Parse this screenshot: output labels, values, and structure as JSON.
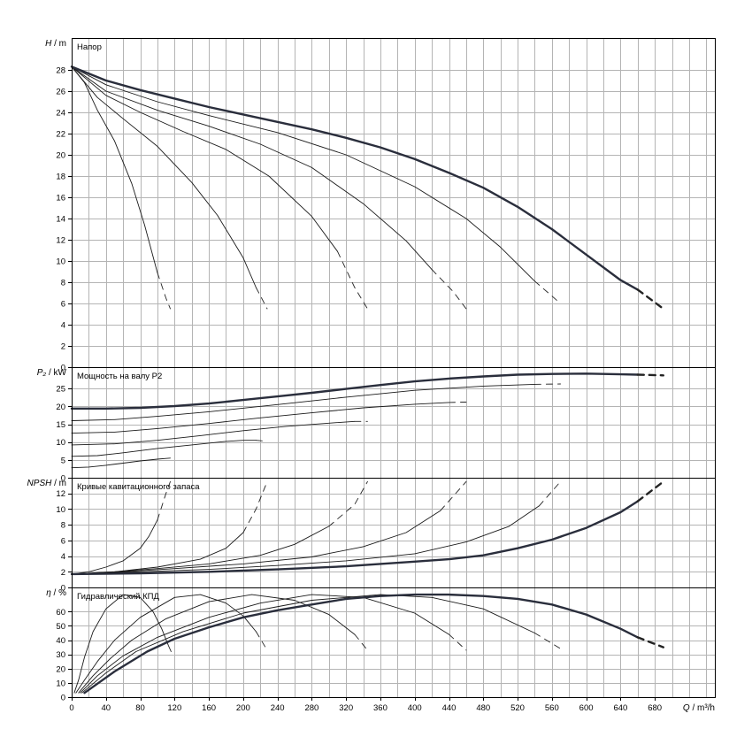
{
  "x_axis": {
    "label_q": "Q",
    "label_unit": "/ m³/h",
    "ticks": [
      0,
      40,
      80,
      120,
      160,
      200,
      240,
      280,
      320,
      360,
      400,
      440,
      480,
      520,
      560,
      600,
      640,
      680
    ],
    "range": [
      0,
      750
    ]
  },
  "panels": [
    {
      "id": "head",
      "title": "Напор",
      "ylabel_sym": "H",
      "ylabel_unit": "/ m",
      "ylim": [
        0,
        31
      ],
      "ticks": [
        0,
        2,
        4,
        6,
        8,
        10,
        12,
        14,
        16,
        18,
        20,
        22,
        24,
        26,
        28
      ],
      "tick_labels": [
        "0",
        "2",
        "4",
        "6",
        "8",
        "10",
        "12",
        "14",
        "16",
        "18",
        "20",
        "22",
        "24",
        "26",
        "28"
      ]
    },
    {
      "id": "power",
      "title": "Мощность на валу P2",
      "ylabel_sym": "P₂",
      "ylabel_unit": "/ kW",
      "ylim": [
        0,
        31
      ],
      "ticks": [
        0,
        5,
        10,
        15,
        20,
        25
      ],
      "tick_labels": [
        "0",
        "5",
        "10",
        "15",
        "20",
        "25"
      ]
    },
    {
      "id": "npsh",
      "title": "Кривые кавитационного запаса",
      "ylabel_sym": "NPSH",
      "ylabel_unit": "/ m",
      "ylim": [
        0,
        14
      ],
      "ticks": [
        0,
        2,
        4,
        6,
        8,
        10,
        12
      ],
      "tick_labels": [
        "0",
        "2",
        "4",
        "6",
        "8",
        "10",
        "12"
      ]
    },
    {
      "id": "eff",
      "title": "Гидравлический КПД",
      "ylabel_sym": "η",
      "ylabel_unit": "/ %",
      "ylim": [
        0,
        77
      ],
      "ticks": [
        0,
        10,
        20,
        30,
        40,
        50,
        60
      ],
      "tick_labels": [
        "0",
        "10",
        "20",
        "30",
        "40",
        "50",
        "60"
      ]
    }
  ],
  "chart_data": {
    "type": "line",
    "xlabel": "Q / m³/h",
    "xlim": [
      0,
      750
    ],
    "panels": [
      {
        "panel": "head",
        "ylabel": "H / m",
        "ylim": [
          0,
          31
        ],
        "series": [
          {
            "bold": false,
            "x": [
              0,
              15,
              30,
              50,
              70,
              85,
              100,
              110,
              115
            ],
            "y": [
              28.3,
              26.8,
              24.2,
              21.3,
              17.3,
              13.4,
              8.9,
              6.5,
              5.5
            ],
            "dash_from": 108
          },
          {
            "bold": false,
            "x": [
              0,
              30,
              60,
              100,
              140,
              170,
              200,
              215,
              228
            ],
            "y": [
              28.3,
              25.4,
              23.4,
              20.8,
              17.4,
              14.3,
              10.3,
              7.5,
              5.5
            ],
            "dash_from": 216
          },
          {
            "bold": false,
            "x": [
              0,
              40,
              80,
              130,
              180,
              230,
              280,
              310,
              330,
              345
            ],
            "y": [
              28.3,
              25.6,
              24.0,
              22.2,
              20.5,
              18.0,
              14.2,
              10.9,
              7.5,
              5.5
            ],
            "dash_from": 328
          },
          {
            "bold": false,
            "x": [
              0,
              40,
              100,
              160,
              220,
              280,
              340,
              390,
              420,
              445,
              460
            ],
            "y": [
              28.3,
              26.0,
              24.2,
              22.7,
              21.0,
              18.8,
              15.4,
              11.9,
              9.2,
              7.1,
              5.5
            ],
            "dash_from": 436
          },
          {
            "bold": false,
            "x": [
              0,
              40,
              100,
              160,
              240,
              320,
              400,
              460,
              500,
              540,
              570
            ],
            "y": [
              28.3,
              26.6,
              25.0,
              23.7,
              22.1,
              20.0,
              17.0,
              14.0,
              11.3,
              8.1,
              6.0
            ],
            "dash_from": 545
          },
          {
            "bold": true,
            "x": [
              0,
              40,
              80,
              120,
              160,
              200,
              240,
              280,
              320,
              360,
              400,
              440,
              480,
              520,
              560,
              600,
              640,
              660,
              690
            ],
            "y": [
              28.3,
              27.0,
              26.1,
              25.3,
              24.5,
              23.8,
              23.1,
              22.4,
              21.6,
              20.7,
              19.6,
              18.3,
              16.9,
              15.1,
              13.0,
              10.6,
              8.2,
              7.3,
              5.5
            ],
            "dash_from": 660
          }
        ]
      },
      {
        "panel": "power",
        "ylabel": "P2 / kW",
        "ylim": [
          0,
          31
        ],
        "series": [
          {
            "bold": false,
            "x": [
              0,
              20,
              40,
              60,
              80,
              100,
              110,
              115
            ],
            "y": [
              2.8,
              3.0,
              3.5,
              4.1,
              4.7,
              5.2,
              5.4,
              5.5
            ],
            "dash_from": 0
          },
          {
            "bold": false,
            "x": [
              0,
              30,
              60,
              100,
              140,
              180,
              200,
              215,
              228
            ],
            "y": [
              6.0,
              6.2,
              7.0,
              8.2,
              9.2,
              10.2,
              10.5,
              10.5,
              10.2
            ],
            "dash_from": 215
          },
          {
            "bold": false,
            "x": [
              0,
              50,
              100,
              150,
              200,
              250,
              300,
              330,
              345
            ],
            "y": [
              9.2,
              9.5,
              10.5,
              11.8,
              13.2,
              14.4,
              15.3,
              15.8,
              15.8
            ],
            "dash_from": 330
          },
          {
            "bold": false,
            "x": [
              0,
              50,
              100,
              160,
              220,
              280,
              340,
              400,
              440,
              460
            ],
            "y": [
              12.5,
              12.8,
              13.8,
              15.2,
              16.8,
              18.2,
              19.6,
              20.6,
              21.1,
              21.2
            ],
            "dash_from": 440
          },
          {
            "bold": false,
            "x": [
              0,
              50,
              100,
              160,
              240,
              320,
              400,
              480,
              540,
              570
            ],
            "y": [
              16.0,
              16.3,
              17.2,
              18.5,
              20.5,
              22.6,
              24.5,
              25.7,
              26.2,
              26.3
            ],
            "dash_from": 540
          },
          {
            "bold": true,
            "x": [
              0,
              40,
              80,
              120,
              160,
              200,
              240,
              280,
              320,
              360,
              400,
              440,
              480,
              520,
              560,
              600,
              640,
              660,
              690
            ],
            "y": [
              19.4,
              19.4,
              19.6,
              20.1,
              20.8,
              21.8,
              22.8,
              23.8,
              24.9,
              26.0,
              27.0,
              27.8,
              28.4,
              28.9,
              29.1,
              29.2,
              29.0,
              28.9,
              28.7
            ],
            "dash_from": 660
          }
        ]
      },
      {
        "panel": "npsh",
        "ylabel": "NPSH / m",
        "ylim": [
          0,
          14
        ],
        "series": [
          {
            "bold": false,
            "x": [
              0,
              20,
              40,
              60,
              80,
              90,
              100,
              110,
              115
            ],
            "y": [
              1.7,
              2.0,
              2.6,
              3.4,
              5.0,
              6.5,
              8.6,
              12.0,
              13.5
            ],
            "dash_from": 108
          },
          {
            "bold": false,
            "x": [
              0,
              50,
              100,
              150,
              180,
              200,
              215,
              228
            ],
            "y": [
              1.7,
              2.0,
              2.6,
              3.6,
              5.0,
              7.0,
              10.0,
              13.5
            ],
            "dash_from": 210
          },
          {
            "bold": false,
            "x": [
              0,
              50,
              100,
              160,
              220,
              260,
              300,
              330,
              345
            ],
            "y": [
              1.7,
              2.0,
              2.4,
              3.0,
              4.1,
              5.5,
              7.8,
              10.6,
              13.5
            ],
            "dash_from": 320
          },
          {
            "bold": false,
            "x": [
              0,
              60,
              120,
              200,
              280,
              340,
              390,
              430,
              460
            ],
            "y": [
              1.7,
              2.0,
              2.4,
              3.0,
              3.9,
              5.2,
              7.0,
              9.8,
              13.5
            ],
            "dash_from": 435
          },
          {
            "bold": false,
            "x": [
              0,
              80,
              160,
              240,
              320,
              400,
              460,
              510,
              545,
              570
            ],
            "y": [
              1.7,
              2.0,
              2.3,
              2.8,
              3.4,
              4.3,
              5.8,
              7.8,
              10.4,
              13.5
            ],
            "dash_from": 545
          },
          {
            "bold": true,
            "x": [
              0,
              80,
              160,
              240,
              320,
              400,
              440,
              480,
              520,
              560,
              600,
              640,
              660,
              690
            ],
            "y": [
              1.7,
              1.8,
              2.0,
              2.3,
              2.7,
              3.3,
              3.6,
              4.1,
              5.0,
              6.1,
              7.6,
              9.6,
              11.0,
              13.5
            ],
            "dash_from": 660
          }
        ]
      },
      {
        "panel": "eff",
        "ylabel": "η / %",
        "ylim": [
          0,
          77
        ],
        "series": [
          {
            "bold": false,
            "x": [
              3,
              8,
              15,
              25,
              40,
              60,
              80,
              95,
              105,
              113,
              116
            ],
            "y": [
              3.0,
              12.0,
              28.0,
              46.0,
              62.0,
              72.0,
              70.0,
              60.0,
              48.0,
              36.0,
              32.0
            ],
            "dash_from": 0
          },
          {
            "bold": false,
            "x": [
              5,
              15,
              30,
              50,
              80,
              120,
              150,
              180,
              200,
              215,
              228
            ],
            "y": [
              3.0,
              12.0,
              25.0,
              40.0,
              56.0,
              70.0,
              72.0,
              66.0,
              57.0,
              46.0,
              33.0
            ],
            "dash_from": 215
          },
          {
            "bold": false,
            "x": [
              8,
              25,
              45,
              70,
              110,
              160,
              210,
              260,
              300,
              330,
              345
            ],
            "y": [
              3.0,
              15.0,
              27.0,
              40.0,
              55.0,
              67.0,
              72.0,
              68.0,
              58.0,
              44.0,
              33.0
            ],
            "dash_from": 330
          },
          {
            "bold": false,
            "x": [
              10,
              30,
              60,
              100,
              160,
              220,
              280,
              340,
              400,
              440,
              460
            ],
            "y": [
              3.0,
              15.0,
              29.0,
              42.0,
              56.0,
              66.0,
              72.0,
              70.0,
              59.0,
              44.0,
              33.0
            ],
            "dash_from": 440
          },
          {
            "bold": false,
            "x": [
              12,
              40,
              75,
              130,
              200,
              280,
              360,
              420,
              480,
              540,
              570
            ],
            "y": [
              3.0,
              17.0,
              32.0,
              46.0,
              59.0,
              68.0,
              72.0,
              70.0,
              62.0,
              45.0,
              34.0
            ],
            "dash_from": 540
          },
          {
            "bold": true,
            "x": [
              15,
              50,
              88,
              120,
              160,
              200,
              240,
              280,
              320,
              360,
              400,
              440,
              480,
              520,
              560,
              600,
              640,
              660,
              690
            ],
            "y": [
              3.0,
              18.0,
              32.0,
              41.0,
              49.0,
              56.0,
              61.0,
              65.0,
              69.0,
              71.0,
              72.0,
              72.0,
              71.0,
              69.0,
              65.0,
              58.0,
              48.0,
              42.0,
              35.0
            ],
            "dash_from": 660
          }
        ]
      }
    ]
  }
}
